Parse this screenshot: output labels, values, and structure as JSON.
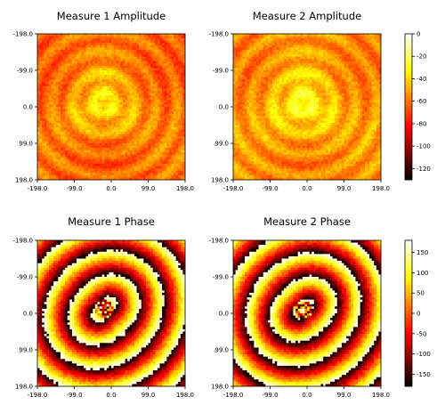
{
  "chart_data": [
    {
      "type": "heatmap",
      "title": "Measure 1 Amplitude",
      "quantity": "amplitude",
      "variant": 1,
      "x_ticks": [
        "-198.0",
        "-99.0",
        "0.0",
        "99.0",
        "198.0"
      ],
      "y_ticks": [
        "-198.0",
        "-99.0",
        "0.0",
        "99.0",
        "198.0"
      ],
      "xlim": [
        -198,
        198
      ],
      "ylim": [
        -198,
        198
      ],
      "y_inverted": true,
      "grid": 64,
      "colormap": "hot",
      "color_range": [
        -130,
        0
      ]
    },
    {
      "type": "heatmap",
      "title": "Measure 2 Amplitude",
      "quantity": "amplitude",
      "variant": 2,
      "x_ticks": [
        "-198.0",
        "-99.0",
        "0.0",
        "99.0",
        "198.0"
      ],
      "y_ticks": [
        "-198.0",
        "-99.0",
        "0.0",
        "99.0",
        "198.0"
      ],
      "xlim": [
        -198,
        198
      ],
      "ylim": [
        -198,
        198
      ],
      "y_inverted": true,
      "grid": 64,
      "colormap": "hot",
      "color_range": [
        -130,
        0
      ]
    },
    {
      "type": "heatmap",
      "title": "Measure 1 Phase",
      "quantity": "phase",
      "variant": 1,
      "x_ticks": [
        "-198.0",
        "-99.0",
        "0.0",
        "99.0",
        "198.0"
      ],
      "y_ticks": [
        "-198.0",
        "-99.0",
        "0.0",
        "99.0",
        "198.0"
      ],
      "xlim": [
        -198,
        198
      ],
      "ylim": [
        -198,
        198
      ],
      "y_inverted": true,
      "grid": 64,
      "colormap": "hot",
      "color_range": [
        -180,
        180
      ]
    },
    {
      "type": "heatmap",
      "title": "Measure 2 Phase",
      "quantity": "phase",
      "variant": 2,
      "x_ticks": [
        "-198.0",
        "-99.0",
        "0.0",
        "99.0",
        "198.0"
      ],
      "y_ticks": [
        "-198.0",
        "-99.0",
        "0.0",
        "99.0",
        "198.0"
      ],
      "xlim": [
        -198,
        198
      ],
      "ylim": [
        -198,
        198
      ],
      "y_inverted": true,
      "grid": 64,
      "colormap": "hot",
      "color_range": [
        -180,
        180
      ]
    }
  ],
  "colorbars": [
    {
      "name": "amplitude",
      "ticks": [
        "0",
        "-20",
        "-40",
        "-60",
        "-80",
        "-100",
        "-120"
      ],
      "range": [
        -130,
        0
      ]
    },
    {
      "name": "phase",
      "ticks": [
        "150",
        "100",
        "50",
        "0",
        "-50",
        "-100",
        "-150"
      ],
      "range": [
        -180,
        180
      ]
    }
  ]
}
